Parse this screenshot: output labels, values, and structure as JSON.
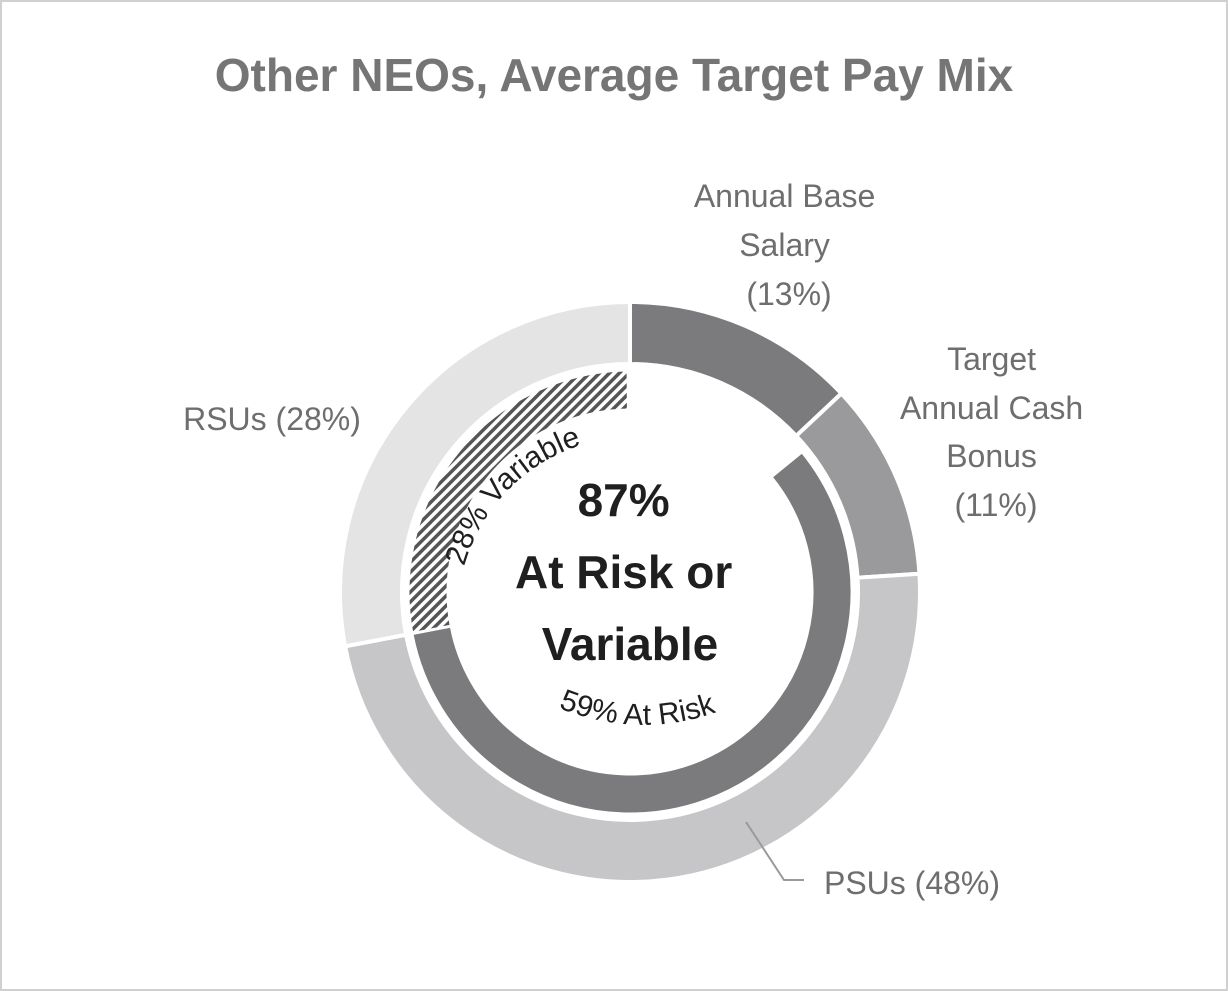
{
  "chart_data": {
    "type": "pie",
    "title": "Other NEOs, Average Target Pay Mix",
    "outer_ring": [
      {
        "label_lines": [
          "Annual Base",
          "Salary",
          "(13%)"
        ],
        "value": 13,
        "color": "#7b7b7e"
      },
      {
        "label_lines": [
          "Target",
          "Annual Cash",
          "Bonus",
          "(11%)"
        ],
        "value": 11,
        "color": "#9a9a9c"
      },
      {
        "label_lines": [
          "PSUs (48%)"
        ],
        "value": 48,
        "color": "#c6c6c8"
      },
      {
        "label_lines": [
          "RSUs (28%)"
        ],
        "value": 28,
        "color": "#e4e4e5"
      }
    ],
    "inner_ring": [
      {
        "label": "59% At Risk",
        "value": 59,
        "color": "#7b7b7e"
      },
      {
        "label": "28% Variable",
        "value": 28,
        "pattern": "hatch"
      }
    ],
    "center_text": [
      "87%",
      "At Risk or",
      "Variable"
    ]
  }
}
